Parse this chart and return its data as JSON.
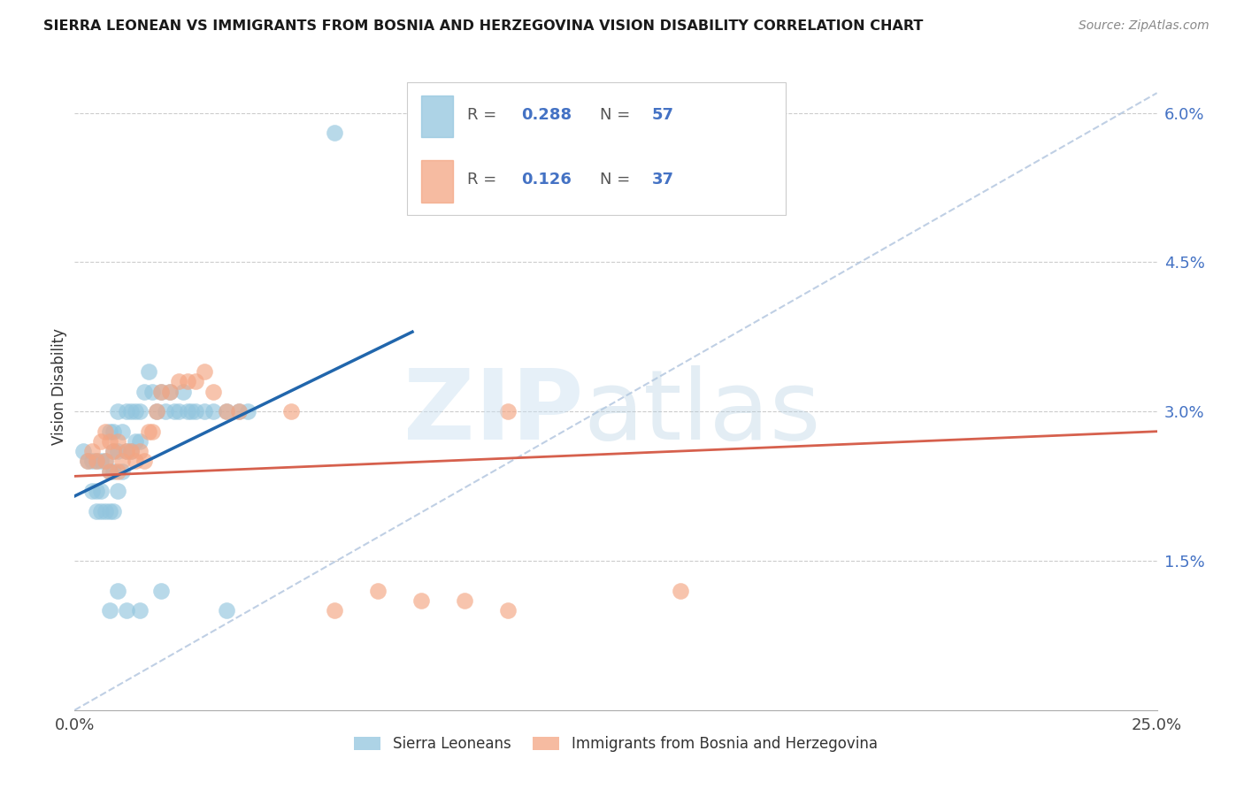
{
  "title": "SIERRA LEONEAN VS IMMIGRANTS FROM BOSNIA AND HERZEGOVINA VISION DISABILITY CORRELATION CHART",
  "source": "Source: ZipAtlas.com",
  "ylabel": "Vision Disability",
  "yticks": [
    0.0,
    0.015,
    0.03,
    0.045,
    0.06
  ],
  "ytick_labels": [
    "",
    "1.5%",
    "3.0%",
    "4.5%",
    "6.0%"
  ],
  "xlim": [
    0.0,
    0.25
  ],
  "ylim": [
    0.0,
    0.065
  ],
  "legend_label1": "Sierra Leoneans",
  "legend_label2": "Immigrants from Bosnia and Herzegovina",
  "blue_color": "#92c5de",
  "pink_color": "#f4a582",
  "line_blue_color": "#2166ac",
  "line_pink_color": "#d6604d",
  "line_dashed_color": "#b0c4de",
  "blue_scatter_x": [
    0.002,
    0.003,
    0.004,
    0.004,
    0.005,
    0.005,
    0.005,
    0.006,
    0.006,
    0.006,
    0.007,
    0.007,
    0.008,
    0.008,
    0.008,
    0.009,
    0.009,
    0.009,
    0.009,
    0.01,
    0.01,
    0.01,
    0.011,
    0.011,
    0.012,
    0.012,
    0.013,
    0.013,
    0.014,
    0.014,
    0.015,
    0.015,
    0.016,
    0.017,
    0.018,
    0.019,
    0.02,
    0.021,
    0.022,
    0.023,
    0.024,
    0.025,
    0.026,
    0.027,
    0.028,
    0.03,
    0.032,
    0.035,
    0.038,
    0.04,
    0.008,
    0.01,
    0.012,
    0.015,
    0.02,
    0.035,
    0.06
  ],
  "blue_scatter_y": [
    0.026,
    0.025,
    0.025,
    0.022,
    0.025,
    0.022,
    0.02,
    0.025,
    0.022,
    0.02,
    0.025,
    0.02,
    0.028,
    0.024,
    0.02,
    0.028,
    0.026,
    0.024,
    0.02,
    0.03,
    0.026,
    0.022,
    0.028,
    0.024,
    0.03,
    0.026,
    0.03,
    0.026,
    0.03,
    0.027,
    0.03,
    0.027,
    0.032,
    0.034,
    0.032,
    0.03,
    0.032,
    0.03,
    0.032,
    0.03,
    0.03,
    0.032,
    0.03,
    0.03,
    0.03,
    0.03,
    0.03,
    0.03,
    0.03,
    0.03,
    0.01,
    0.012,
    0.01,
    0.01,
    0.012,
    0.01,
    0.058
  ],
  "pink_scatter_x": [
    0.003,
    0.004,
    0.005,
    0.006,
    0.007,
    0.007,
    0.008,
    0.008,
    0.009,
    0.01,
    0.01,
    0.011,
    0.012,
    0.013,
    0.014,
    0.015,
    0.016,
    0.017,
    0.018,
    0.019,
    0.02,
    0.022,
    0.024,
    0.026,
    0.028,
    0.03,
    0.032,
    0.035,
    0.038,
    0.05,
    0.1,
    0.14,
    0.1,
    0.06,
    0.07,
    0.08,
    0.09
  ],
  "pink_scatter_y": [
    0.025,
    0.026,
    0.025,
    0.027,
    0.028,
    0.025,
    0.027,
    0.024,
    0.026,
    0.027,
    0.024,
    0.025,
    0.026,
    0.026,
    0.025,
    0.026,
    0.025,
    0.028,
    0.028,
    0.03,
    0.032,
    0.032,
    0.033,
    0.033,
    0.033,
    0.034,
    0.032,
    0.03,
    0.03,
    0.03,
    0.03,
    0.012,
    0.01,
    0.01,
    0.012,
    0.011,
    0.011
  ],
  "blue_line_x": [
    0.0,
    0.078
  ],
  "blue_line_y": [
    0.0215,
    0.038
  ],
  "pink_line_x": [
    0.0,
    0.25
  ],
  "pink_line_y": [
    0.0235,
    0.028
  ],
  "diag_line_x": [
    0.0,
    0.25
  ],
  "diag_line_y": [
    0.0,
    0.062
  ]
}
